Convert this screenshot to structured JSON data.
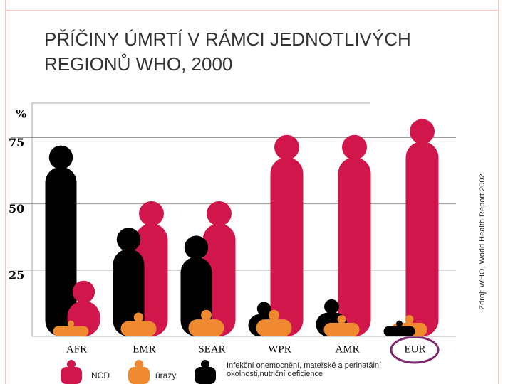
{
  "chart_data": {
    "type": "pictogram",
    "title": "PŘÍČINY ÚMRTÍ V RÁMCI JEDNOTLIVÝCH REGIONŮ WHO, 2000",
    "y_label": "%",
    "source": "Zdroj: WHO, World Health Report 2002",
    "categories": [
      "AFR",
      "EMR",
      "SEAR",
      "WPR",
      "AMR",
      "EUR"
    ],
    "series": [
      {
        "name": "NCD",
        "color": "#d0164a",
        "values": [
          21,
          51,
          51,
          76,
          76,
          82
        ]
      },
      {
        "name": "úrazy",
        "color": "#f08a30",
        "values": [
          6,
          9,
          10,
          10,
          8,
          8
        ]
      },
      {
        "name": "Infekční onemocnění, mateřské a perinatální okolnosti,nutriční deficience",
        "color": "#000000",
        "values": [
          72,
          41,
          38,
          13,
          14,
          6
        ]
      }
    ],
    "ylim": [
      0,
      88
    ],
    "yticks": [
      25,
      50,
      75
    ],
    "grid": true
  }
}
